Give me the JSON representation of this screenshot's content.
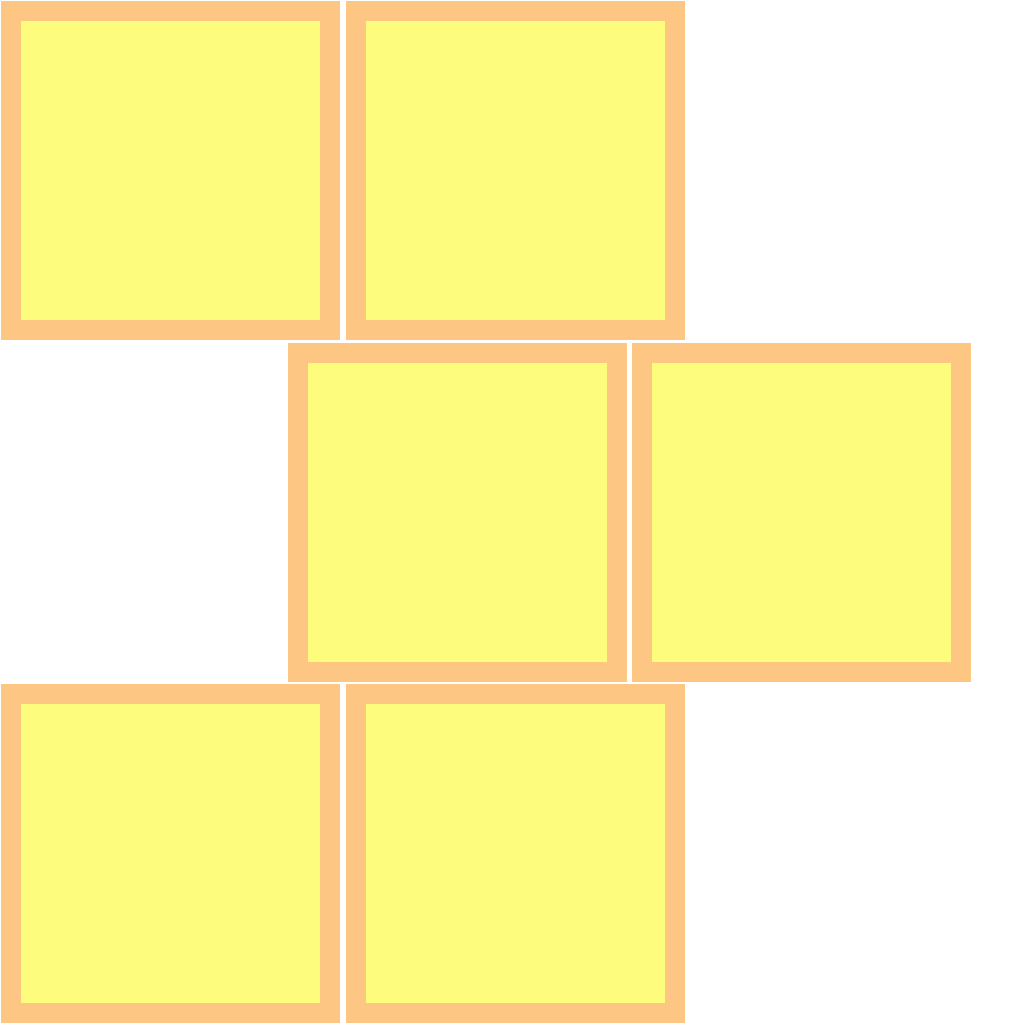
{
  "colors": {
    "background": "#ffffff",
    "tile_border": "#fdc682",
    "tile_fill": "#fdfc7c"
  },
  "tiles": [
    {
      "id": "tile-1",
      "label": ""
    },
    {
      "id": "tile-2",
      "label": ""
    },
    {
      "id": "tile-3",
      "label": ""
    },
    {
      "id": "tile-4",
      "label": ""
    },
    {
      "id": "tile-5",
      "label": ""
    },
    {
      "id": "tile-6",
      "label": ""
    }
  ]
}
